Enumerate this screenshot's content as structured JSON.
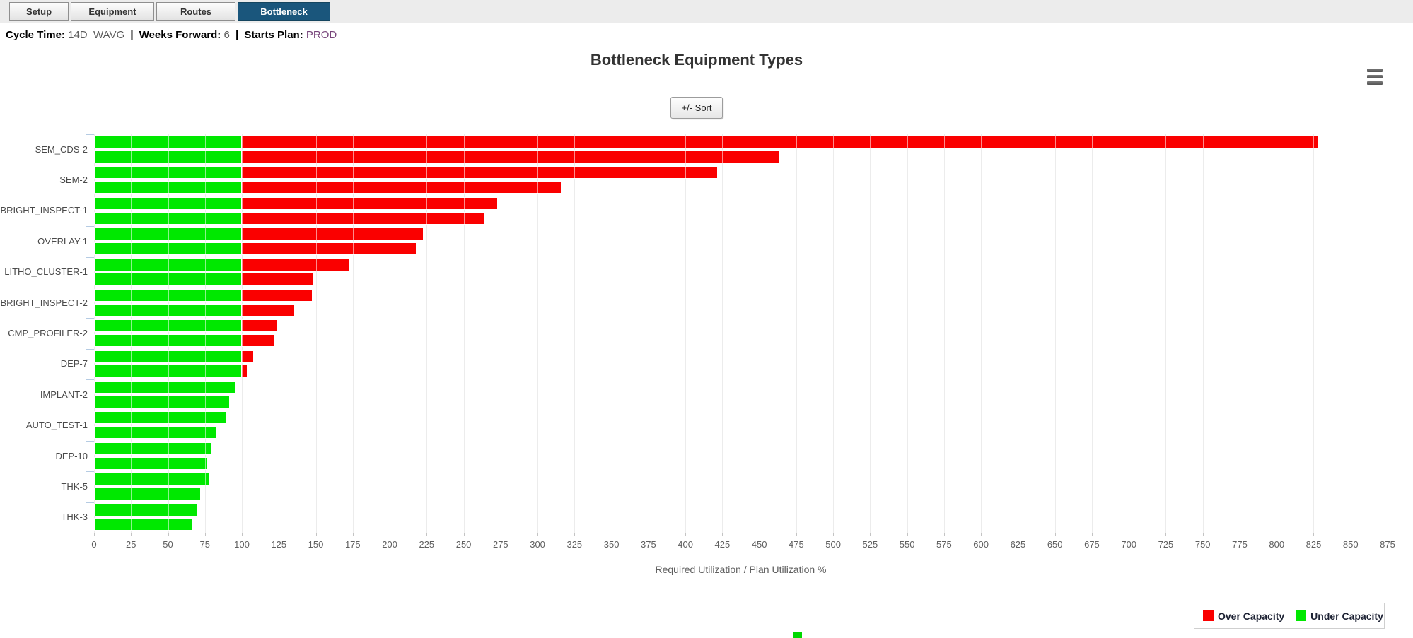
{
  "tabs": [
    {
      "label": "Setup",
      "active": false
    },
    {
      "label": "Equipment",
      "active": false
    },
    {
      "label": "Routes",
      "active": false
    },
    {
      "label": "Bottleneck",
      "active": true
    }
  ],
  "header": {
    "cycle_time_label": "Cycle Time:",
    "cycle_time_value": "14D_WAVG",
    "separator": "|",
    "weeks_forward_label": "Weeks Forward:",
    "weeks_forward_value": "6",
    "starts_plan_label": "Starts Plan:",
    "starts_plan_value": "PROD"
  },
  "chart": {
    "title": "Bottleneck Equipment Types",
    "sort_button_label": "+/- Sort",
    "menu_icon": "hamburger-icon"
  },
  "chart_data": {
    "type": "bar",
    "orientation": "horizontal",
    "title": "Bottleneck Equipment Types",
    "xlabel": "Required Utilization / Plan Utilization %",
    "xlim": [
      0,
      875
    ],
    "tick_interval": 25,
    "grid": true,
    "threshold": 100,
    "categories": [
      "SEM_CDS-2",
      "SEM-2",
      "BRIGHT_INSPECT-1",
      "OVERLAY-1",
      "LITHO_CLUSTER-1",
      "BRIGHT_INSPECT-2",
      "CMP_PROFILER-2",
      "DEP-7",
      "IMPLANT-2",
      "AUTO_TEST-1",
      "DEP-10",
      "THK-5",
      "THK-3"
    ],
    "series": [
      {
        "name": "Required Utilization",
        "values": [
          828,
          422,
          273,
          223,
          173,
          148,
          124,
          108,
          96,
          90,
          80,
          78,
          70
        ]
      },
      {
        "name": "Plan Utilization",
        "values": [
          464,
          316,
          264,
          218,
          149,
          136,
          122,
          104,
          92,
          83,
          77,
          72,
          67
        ]
      }
    ],
    "colors": {
      "over_capacity": "#fa0000",
      "under_capacity": "#00e800"
    },
    "legend_position": "bottom-right"
  },
  "legend": {
    "items": [
      {
        "label": "Over Capacity",
        "color": "#fa0000"
      },
      {
        "label": "Under Capacity",
        "color": "#00e800"
      }
    ]
  }
}
